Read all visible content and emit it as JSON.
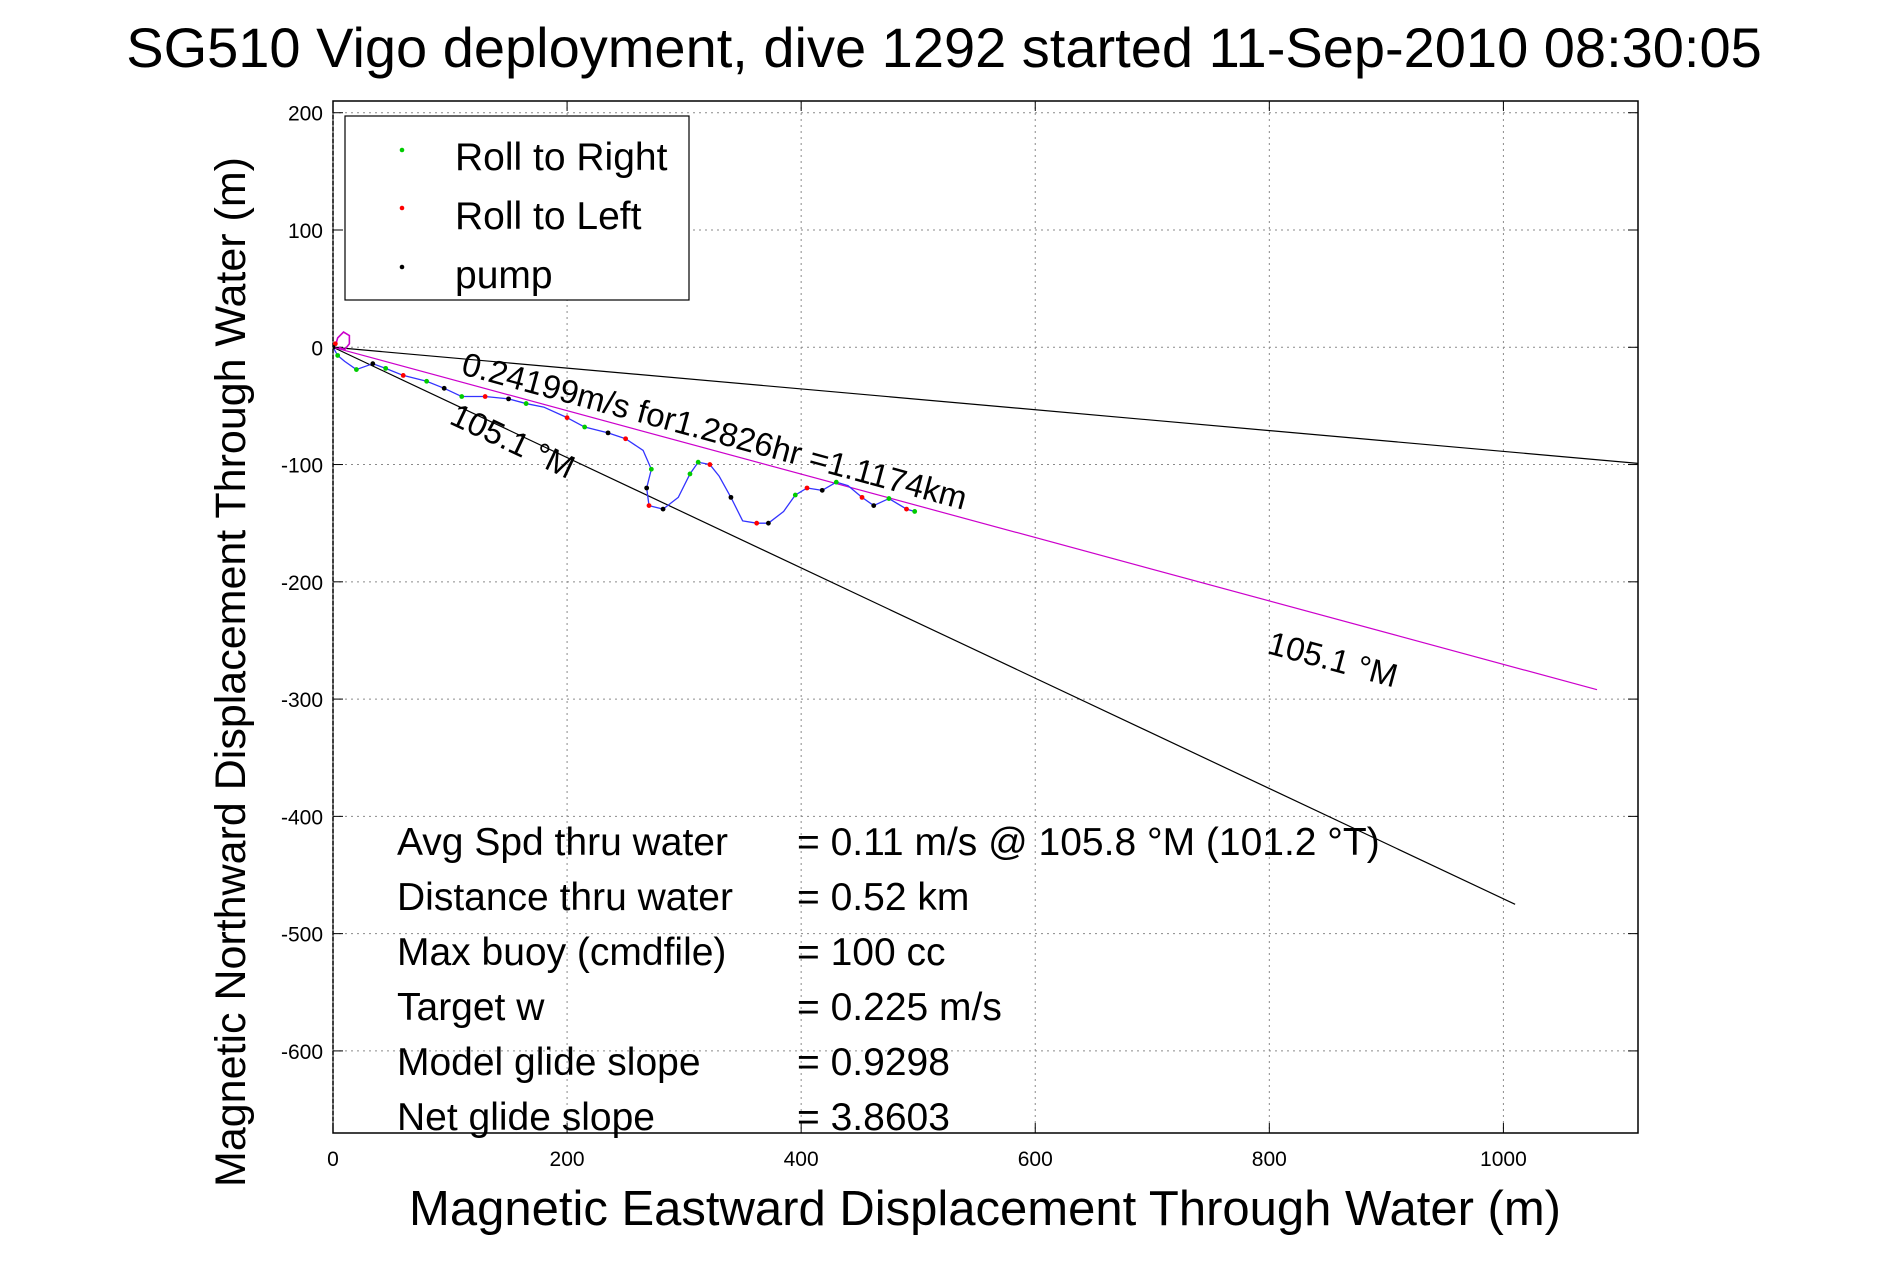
{
  "chart_data": {
    "type": "scatter",
    "title": "SG510 Vigo deployment, dive 1292 started 11-Sep-2010 08:30:05",
    "xlabel": "Magnetic Eastward Displacement Through Water (m)",
    "ylabel": "Magnetic Northward Displacement Through Water (m)",
    "xlim": [
      0,
      1115
    ],
    "ylim": [
      -670,
      210
    ],
    "xticks": [
      0,
      200,
      400,
      600,
      800,
      1000
    ],
    "yticks": [
      200,
      100,
      0,
      -100,
      -200,
      -300,
      -400,
      -500,
      -600
    ],
    "grid": true,
    "legend_position": "top-left",
    "legend": [
      {
        "label": "Roll to Right",
        "color": "#00cc00"
      },
      {
        "label": "Roll to Left",
        "color": "#ff0000"
      },
      {
        "label": "pump",
        "color": "#000000"
      }
    ],
    "lines": [
      {
        "color": "#000000",
        "points": [
          [
            0,
            0
          ],
          [
            1115,
            -99
          ]
        ]
      },
      {
        "color": "#000000",
        "points": [
          [
            0,
            0
          ],
          [
            1010,
            -475
          ]
        ]
      },
      {
        "color": "#cc00cc",
        "points": [
          [
            0,
            0
          ],
          [
            1080,
            -292
          ]
        ]
      }
    ],
    "track": {
      "color": "#3333ff",
      "points": [
        [
          0,
          0
        ],
        [
          4,
          -7
        ],
        [
          10,
          -12
        ],
        [
          20,
          -19
        ],
        [
          34,
          -14
        ],
        [
          45,
          -18
        ],
        [
          60,
          -24
        ],
        [
          80,
          -29
        ],
        [
          95,
          -35
        ],
        [
          110,
          -42
        ],
        [
          130,
          -42
        ],
        [
          150,
          -44
        ],
        [
          165,
          -48
        ],
        [
          180,
          -51
        ],
        [
          200,
          -60
        ],
        [
          215,
          -68
        ],
        [
          235,
          -73
        ],
        [
          250,
          -78
        ],
        [
          265,
          -88
        ],
        [
          272,
          -104
        ],
        [
          268,
          -120
        ],
        [
          270,
          -135
        ],
        [
          282,
          -138
        ],
        [
          295,
          -128
        ],
        [
          305,
          -108
        ],
        [
          312,
          -98
        ],
        [
          322,
          -100
        ],
        [
          330,
          -110
        ],
        [
          340,
          -128
        ],
        [
          350,
          -148
        ],
        [
          362,
          -150
        ],
        [
          372,
          -150
        ],
        [
          385,
          -140
        ],
        [
          395,
          -126
        ],
        [
          405,
          -120
        ],
        [
          418,
          -122
        ],
        [
          430,
          -115
        ],
        [
          440,
          -118
        ],
        [
          452,
          -128
        ],
        [
          462,
          -135
        ],
        [
          475,
          -129
        ],
        [
          490,
          -138
        ],
        [
          497,
          -140
        ]
      ]
    },
    "start_loop": {
      "points": [
        [
          2,
          1
        ],
        [
          4,
          8
        ],
        [
          9,
          13
        ],
        [
          14,
          10
        ],
        [
          14,
          3
        ],
        [
          10,
          -2
        ],
        [
          5,
          0
        ]
      ]
    },
    "points": {
      "roll_right": [
        [
          4,
          -7
        ],
        [
          20,
          -19
        ],
        [
          45,
          -18
        ],
        [
          80,
          -29
        ],
        [
          110,
          -42
        ],
        [
          165,
          -48
        ],
        [
          215,
          -68
        ],
        [
          272,
          -104
        ],
        [
          305,
          -108
        ],
        [
          312,
          -98
        ],
        [
          395,
          -126
        ],
        [
          430,
          -115
        ],
        [
          475,
          -129
        ],
        [
          497,
          -140
        ]
      ],
      "roll_left": [
        [
          2,
          3
        ],
        [
          60,
          -24
        ],
        [
          130,
          -42
        ],
        [
          200,
          -60
        ],
        [
          250,
          -78
        ],
        [
          270,
          -135
        ],
        [
          322,
          -100
        ],
        [
          362,
          -150
        ],
        [
          405,
          -120
        ],
        [
          452,
          -128
        ],
        [
          490,
          -138
        ]
      ],
      "pump": [
        [
          0,
          0
        ],
        [
          34,
          -14
        ],
        [
          95,
          -35
        ],
        [
          150,
          -44
        ],
        [
          235,
          -73
        ],
        [
          268,
          -120
        ],
        [
          282,
          -138
        ],
        [
          340,
          -128
        ],
        [
          372,
          -150
        ],
        [
          418,
          -122
        ],
        [
          462,
          -135
        ]
      ]
    },
    "annotations": {
      "current_label": "0.24199m/s for1.2826hr =1.1174km",
      "heading_near": "105.1 °M",
      "heading_far": "105.1 °M"
    },
    "stats": [
      {
        "label": "Avg Spd thru water",
        "value": "=  0.11 m/s @ 105.8 °M (101.2 °T)"
      },
      {
        "label": "Distance thru water",
        "value": "=  0.52 km"
      },
      {
        "label": "Max buoy (cmdfile)",
        "value": "= 100 cc"
      },
      {
        "label": "Target w",
        "value": "= 0.225 m/s"
      },
      {
        "label": "Model glide slope",
        "value": "= 0.9298"
      },
      {
        "label": "Net glide slope",
        "value": "= 3.8603"
      }
    ]
  }
}
